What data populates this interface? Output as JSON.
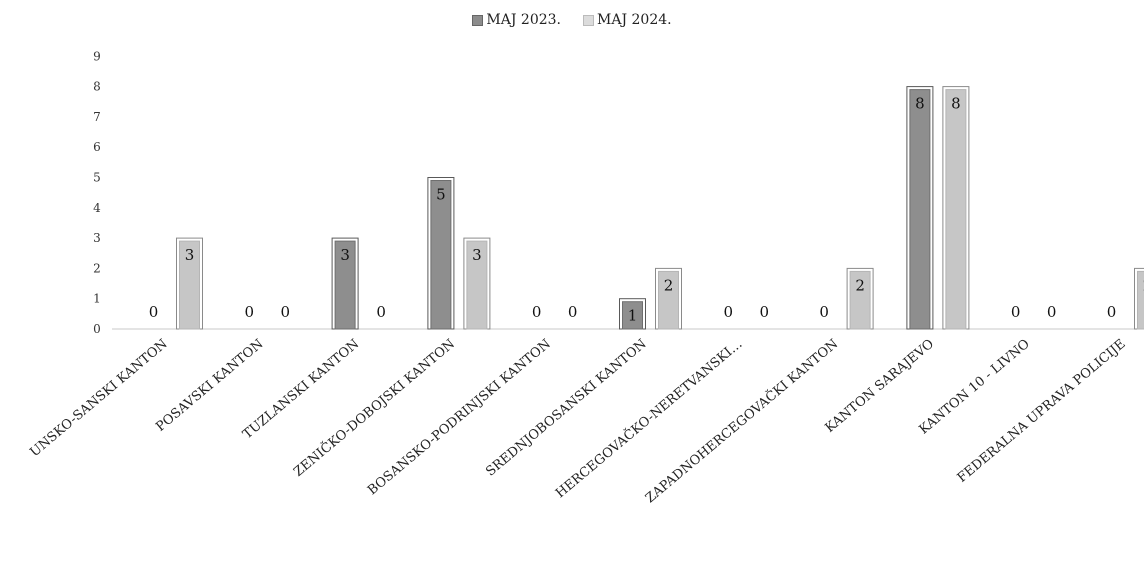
{
  "chart_data": {
    "type": "bar",
    "categories": [
      "UNSKO-SANSKI KANTON",
      "POSAVSKI KANTON",
      "TUZLANSKI KANTON",
      "ZENIČKO-DOBOJSKI KANTON",
      "BOSANSKO-PODRINJSKI KANTON",
      "SREDNJOBOSANSKI KANTON",
      "HERCEGOVAČKO-NERETVANSKI…",
      "ZAPADNOHERCEGOVAČKI KANTON",
      "KANTON SARAJEVO",
      "KANTON 10 - LIVNO",
      "FEDERALNA UPRAVA POLICIJE"
    ],
    "series": [
      {
        "name": "MAJ 2023.",
        "values": [
          0,
          0,
          3,
          5,
          0,
          1,
          0,
          0,
          8,
          0,
          0
        ],
        "color": "#8c8c8c"
      },
      {
        "name": "MAJ 2024.",
        "values": [
          3,
          0,
          0,
          3,
          0,
          2,
          0,
          2,
          8,
          0,
          2
        ],
        "color": "#c4c4c4"
      }
    ],
    "yticks": [
      "0",
      "1",
      "2",
      "3",
      "4",
      "5",
      "6",
      "7",
      "8",
      "9"
    ],
    "ylim": [
      0,
      9
    ],
    "grid": false,
    "legend_position": "top-center"
  }
}
